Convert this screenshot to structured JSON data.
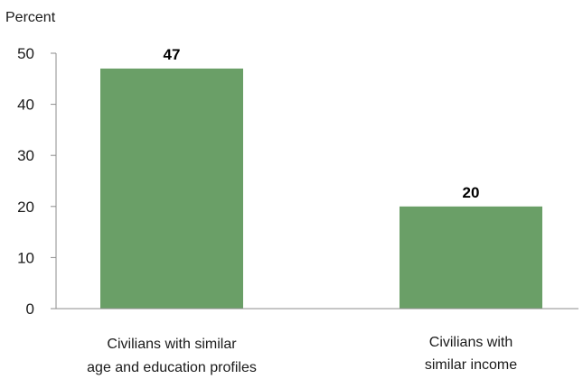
{
  "chart_data": {
    "type": "bar",
    "title": "",
    "xlabel": "",
    "ylabel": "Percent",
    "ylim": [
      0,
      50
    ],
    "yticks": [
      0,
      10,
      20,
      30,
      40,
      50
    ],
    "grid": false,
    "categories": [
      [
        "Civilians with similar",
        "age and education profiles"
      ],
      [
        "Civilians with",
        "similar income"
      ]
    ],
    "values": [
      47,
      20
    ],
    "data_labels": [
      "47",
      "20"
    ],
    "bar_color": "#6a9f67"
  }
}
